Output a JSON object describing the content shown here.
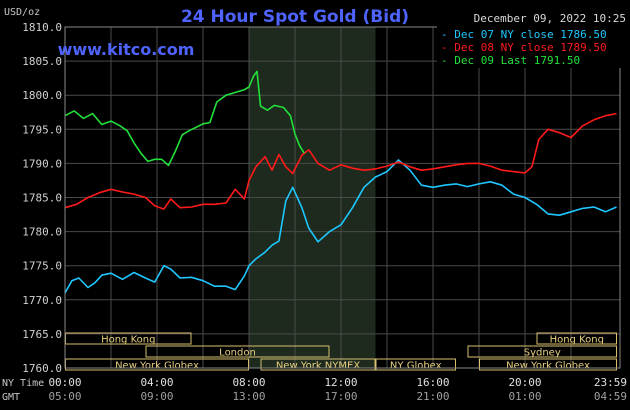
{
  "chart_data": {
    "type": "line",
    "title": "24 Hour Spot Gold (Bid)",
    "watermark": "www.kitco.com",
    "unit_label": "USD/oz",
    "timestamp": "December 09, 2022 10:25",
    "ylim": [
      1760,
      1810
    ],
    "y_ticks": [
      "1810.0",
      "1805.0",
      "1800.0",
      "1795.0",
      "1790.0",
      "1785.0",
      "1780.0",
      "1775.0",
      "1770.0",
      "1765.0",
      "1760.0"
    ],
    "time_rows": [
      {
        "label": "NY Time",
        "ticks": [
          "00:00",
          "04:00",
          "08:00",
          "12:00",
          "16:00",
          "20:00",
          "23:59"
        ]
      },
      {
        "label": "GMT",
        "ticks": [
          "05:00",
          "09:00",
          "13:00",
          "17:00",
          "21:00",
          "01:00",
          "04:59"
        ]
      }
    ],
    "highlight_hours": [
      8.0,
      13.5
    ],
    "sessions": [
      {
        "name": "Hong Kong",
        "start": 0,
        "end": 5.5,
        "row": 0
      },
      {
        "name": "Hong Kong",
        "start": 20.5,
        "end": 24,
        "row": 0
      },
      {
        "name": "London",
        "start": 3.5,
        "end": 11.5,
        "row": 1
      },
      {
        "name": "Sydney",
        "start": 17.5,
        "end": 24,
        "row": 1
      },
      {
        "name": "New York Globex",
        "start": 0,
        "end": 8,
        "row": 2
      },
      {
        "name": "New York NYMEX",
        "start": 8.5,
        "end": 13.5,
        "row": 2
      },
      {
        "name": "NY Globex",
        "start": 13.5,
        "end": 17,
        "row": 2
      },
      {
        "name": "New York Globex",
        "start": 18,
        "end": 24,
        "row": 2
      }
    ],
    "series": [
      {
        "name": "Dec 07 NY close 1786.50",
        "color": "#1ec8ff",
        "x": [
          0,
          0.3,
          0.6,
          1,
          1.3,
          1.6,
          2,
          2.5,
          3,
          3.5,
          3.9,
          4.3,
          4.6,
          5,
          5.5,
          6,
          6.5,
          7,
          7.4,
          7.8,
          8,
          8.3,
          8.7,
          9,
          9.3,
          9.6,
          9.9,
          10.3,
          10.6,
          11,
          11.5,
          12,
          12.5,
          13,
          13.5,
          14,
          14.5,
          15,
          15.5,
          16,
          16.5,
          17,
          17.5,
          18,
          18.5,
          19,
          19.5,
          20,
          20.5,
          21,
          21.5,
          22,
          22.5,
          23,
          23.5,
          23.98
        ],
        "values": [
          1771,
          1772.8,
          1773.2,
          1771.8,
          1772.5,
          1773.6,
          1773.9,
          1773,
          1774,
          1773.2,
          1772.6,
          1775,
          1774.5,
          1773.2,
          1773.3,
          1772.8,
          1772,
          1772,
          1771.5,
          1773.5,
          1775,
          1776,
          1777,
          1778,
          1778.6,
          1784.5,
          1786.5,
          1783.5,
          1780.5,
          1778.5,
          1780,
          1781,
          1783.5,
          1786.5,
          1788,
          1788.8,
          1790.5,
          1789,
          1786.8,
          1786.5,
          1786.8,
          1787,
          1786.6,
          1787,
          1787.3,
          1786.8,
          1785.5,
          1785,
          1784,
          1782.6,
          1782.4,
          1782.9,
          1783.4,
          1783.6,
          1782.9,
          1783.6
        ]
      },
      {
        "name": "Dec 08 NY close 1789.50",
        "color": "#ff1a1a",
        "x": [
          0,
          0.5,
          1,
          1.5,
          2,
          2.5,
          3,
          3.5,
          3.9,
          4.3,
          4.6,
          5,
          5.5,
          6,
          6.5,
          7,
          7.4,
          7.8,
          8,
          8.3,
          8.7,
          9,
          9.3,
          9.6,
          9.9,
          10.3,
          10.6,
          11,
          11.5,
          12,
          12.5,
          13,
          13.5,
          14,
          14.5,
          15,
          15.5,
          16,
          16.5,
          17,
          17.5,
          18,
          18.5,
          19,
          19.5,
          20,
          20.3,
          20.6,
          21,
          21.5,
          22,
          22.5,
          23,
          23.5,
          23.98
        ],
        "values": [
          1783.5,
          1784,
          1785,
          1785.7,
          1786.2,
          1785.8,
          1785.5,
          1785,
          1783.8,
          1783.3,
          1784.8,
          1783.5,
          1783.6,
          1784,
          1784,
          1784.2,
          1786.2,
          1784.8,
          1787.5,
          1789.5,
          1791,
          1789,
          1791.3,
          1789.5,
          1788.5,
          1791.2,
          1792,
          1790,
          1789,
          1789.8,
          1789.3,
          1789,
          1789.2,
          1789.6,
          1790.2,
          1789.5,
          1789,
          1789.2,
          1789.5,
          1789.8,
          1790,
          1790,
          1789.6,
          1789,
          1788.8,
          1788.6,
          1789.5,
          1793.5,
          1795,
          1794.5,
          1793.8,
          1795.5,
          1796.4,
          1797,
          1797.3
        ]
      },
      {
        "name": "Dec 09 Last 1791.50",
        "color": "#22e03a",
        "x": [
          0,
          0.4,
          0.8,
          1.2,
          1.6,
          2,
          2.4,
          2.7,
          3,
          3.3,
          3.6,
          3.9,
          4.2,
          4.5,
          4.8,
          5.1,
          5.4,
          5.7,
          6,
          6.3,
          6.6,
          7,
          7.4,
          7.8,
          8,
          8.2,
          8.35,
          8.5,
          8.8,
          9.1,
          9.5,
          9.8,
          10,
          10.2,
          10.4
        ],
        "values": [
          1797,
          1797.7,
          1796.6,
          1797.3,
          1795.7,
          1796.2,
          1795.5,
          1794.8,
          1793,
          1791.5,
          1790.3,
          1790.6,
          1790.6,
          1789.7,
          1791.8,
          1794.2,
          1794.8,
          1795.3,
          1795.8,
          1796,
          1799,
          1800,
          1800.4,
          1800.8,
          1801.2,
          1802.8,
          1803.5,
          1798.4,
          1797.8,
          1798.5,
          1798.2,
          1797,
          1794.3,
          1792.6,
          1791.5
        ]
      }
    ]
  }
}
